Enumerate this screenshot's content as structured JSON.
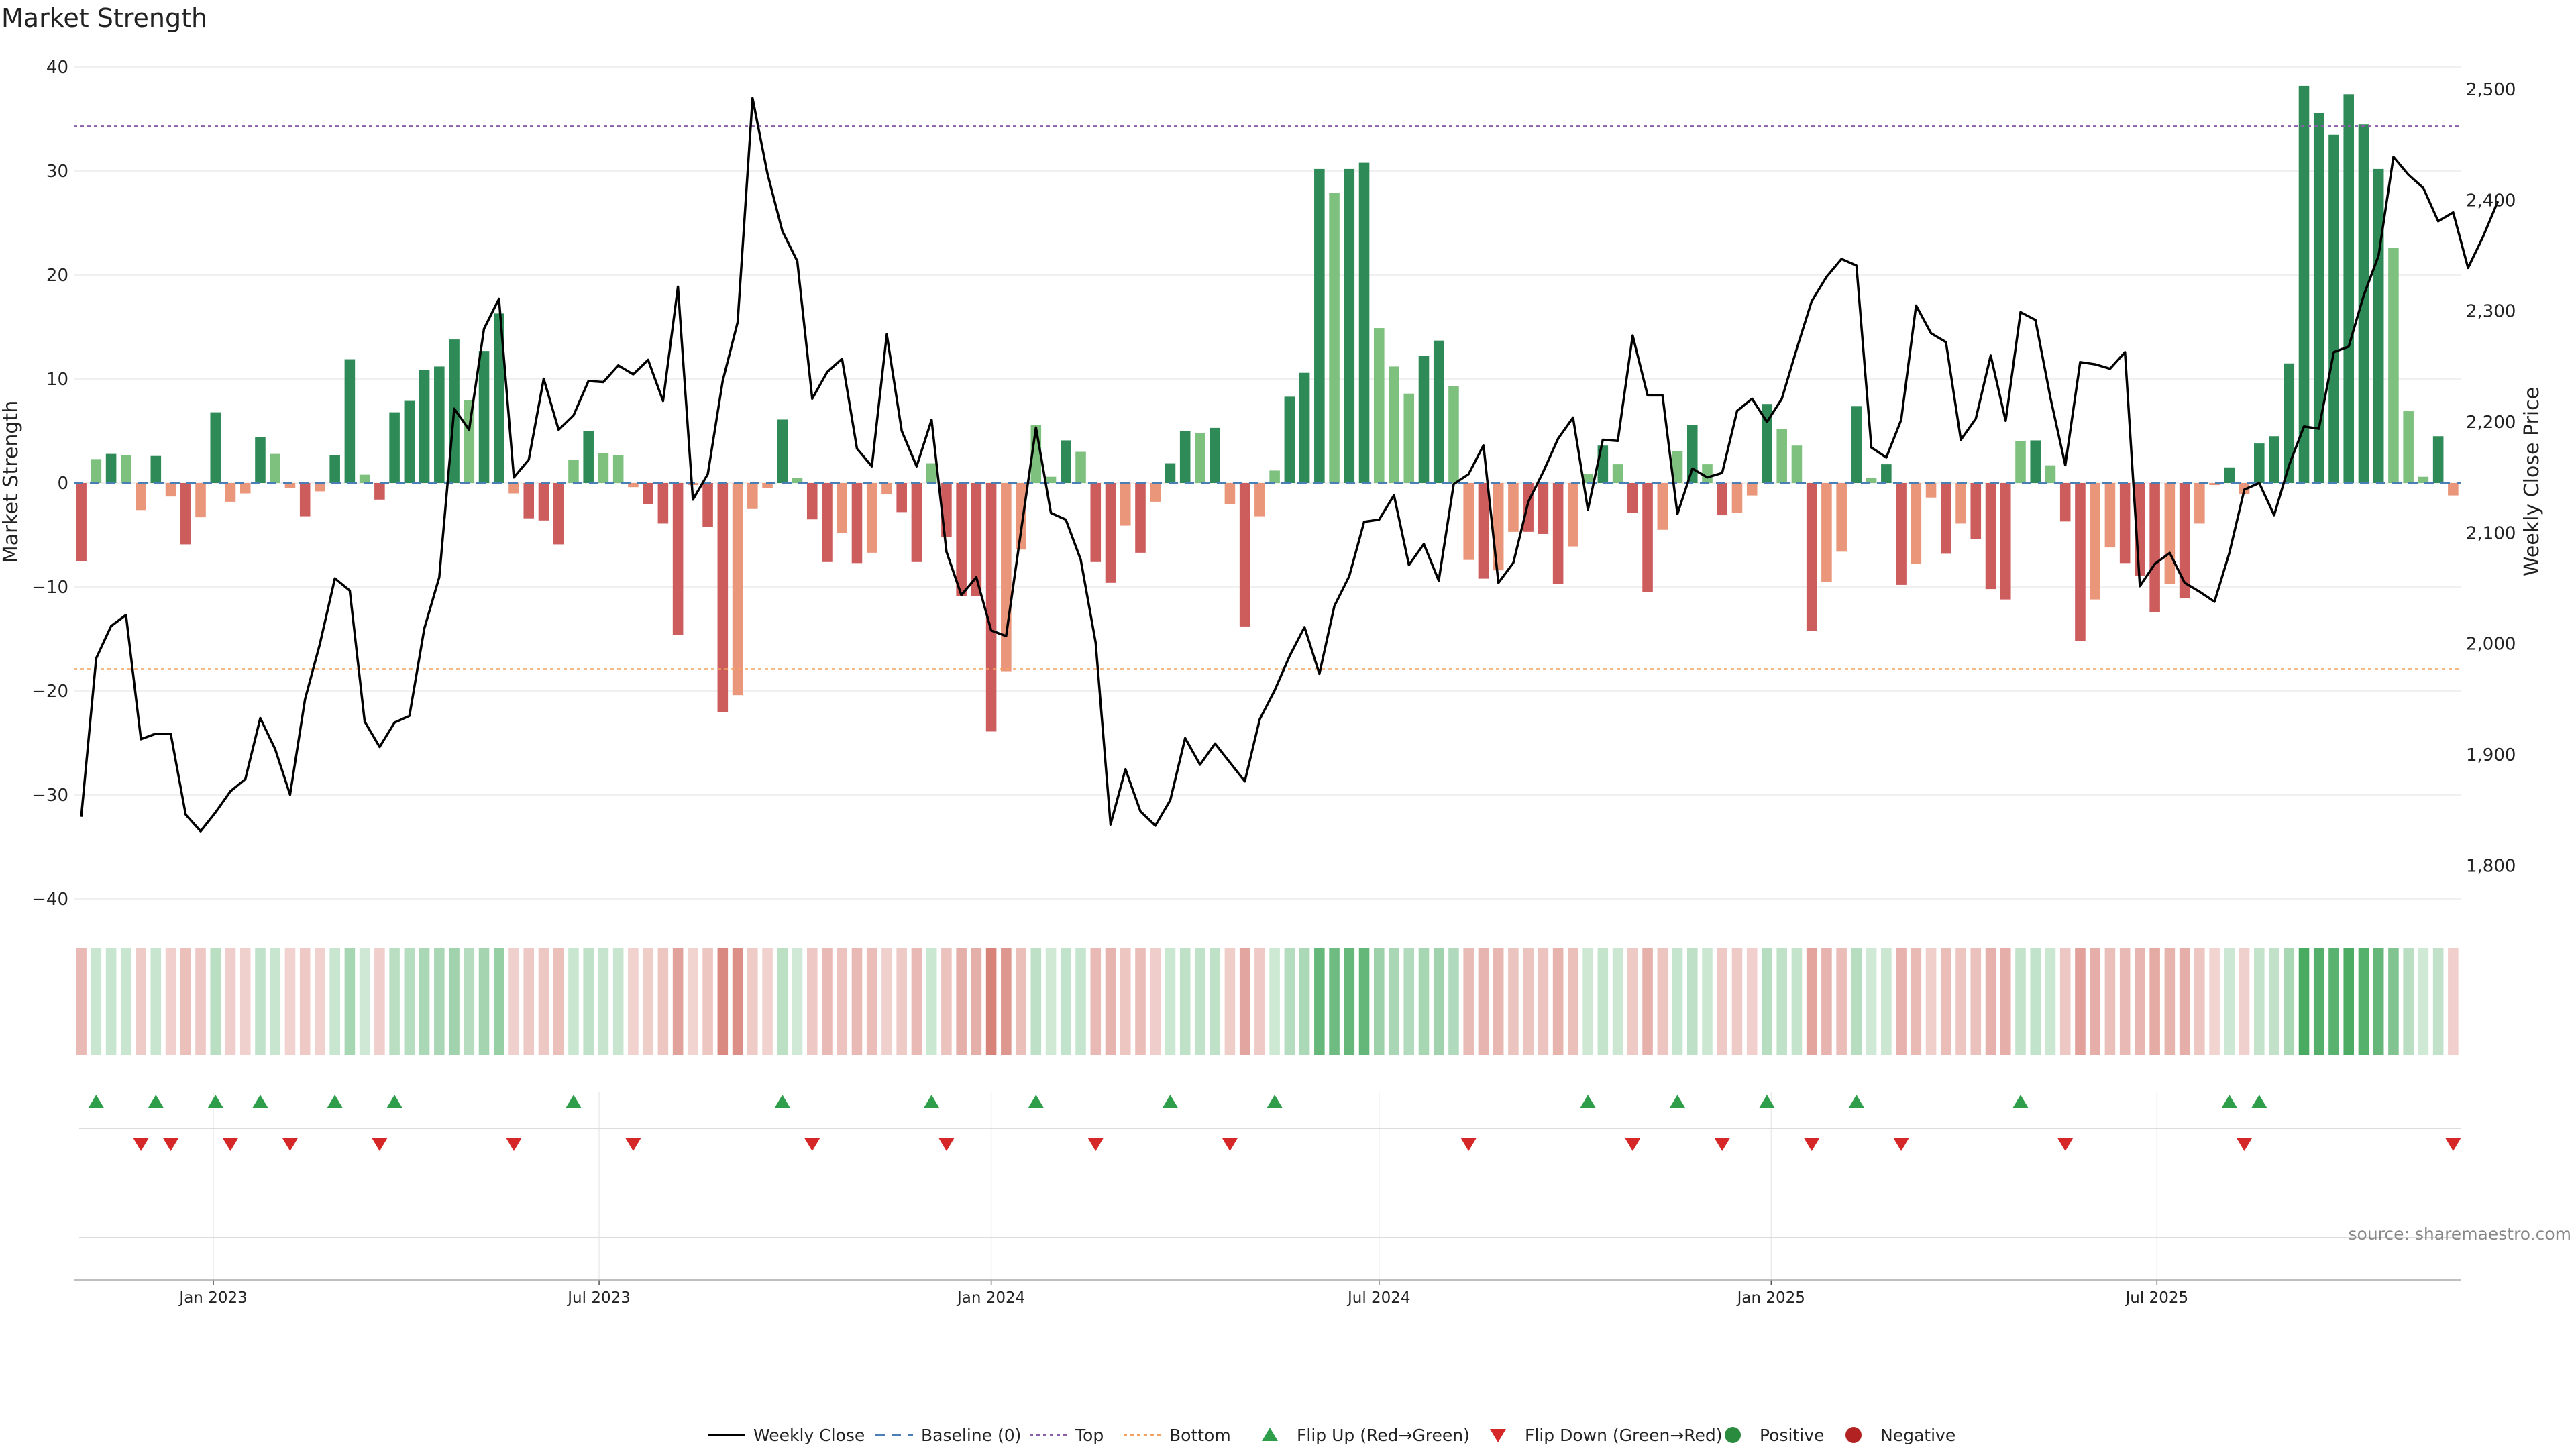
{
  "chart_data": {
    "type": "bar",
    "title": "Market Strength",
    "ylabel": "Market Strength",
    "y2label": "Weekly Close Price",
    "ylim": [
      -40,
      40
    ],
    "y2lim": [
      1770,
      2520
    ],
    "yticks": [
      "40",
      "30",
      "20",
      "10",
      "0",
      "−10",
      "−20",
      "−30",
      "−40"
    ],
    "y2ticks": [
      "2,500",
      "2,400",
      "2,300",
      "2,200",
      "2,100",
      "2,000",
      "1,900",
      "1,800"
    ],
    "x_start": "2022-10-31",
    "x_step_days": 7,
    "date_ticks": [
      {
        "date": "2023-01-01",
        "label": "Jan 2023"
      },
      {
        "date": "2023-07-01",
        "label": "Jul 2023"
      },
      {
        "date": "2024-01-01",
        "label": "Jan 2024"
      },
      {
        "date": "2024-07-01",
        "label": "Jul 2024"
      },
      {
        "date": "2025-01-01",
        "label": "Jan 2025"
      },
      {
        "date": "2025-07-01",
        "label": "Jul 2025"
      }
    ],
    "top_line": 34.3,
    "bottom_line": -17.9,
    "strength": [
      -7.5,
      2.3,
      2.8,
      2.7,
      -2.6,
      2.6,
      -1.3,
      -5.9,
      -3.3,
      6.8,
      -1.8,
      -1,
      4.4,
      2.8,
      -0.5,
      -3.2,
      -0.8,
      2.7,
      11.9,
      0.8,
      -1.6,
      6.8,
      7.9,
      10.9,
      11.2,
      13.8,
      8,
      12.7,
      16.3,
      -1,
      -3.4,
      -3.6,
      -5.9,
      2.2,
      5,
      2.9,
      2.7,
      -0.4,
      -2,
      -3.9,
      -14.6,
      -0.2,
      -4.2,
      -22,
      -20.4,
      -2.5,
      -0.5,
      6.1,
      0.5,
      -3.5,
      -7.6,
      -4.8,
      -7.7,
      -6.7,
      -1.1,
      -2.8,
      -7.6,
      1.9,
      -5.2,
      -10.9,
      -10.9,
      -23.9,
      -18.1,
      -6.4,
      5.6,
      0.6,
      4.1,
      3,
      -7.6,
      -9.6,
      -4.1,
      -6.7,
      -1.8,
      1.9,
      5,
      4.8,
      5.3,
      -2,
      -13.8,
      -3.2,
      1.2,
      8.3,
      10.6,
      30.2,
      27.9,
      30.2,
      30.8,
      14.9,
      11.2,
      8.6,
      12.2,
      13.7,
      9.3,
      -7.4,
      -9.2,
      -8.4,
      -4.7,
      -4.7,
      -4.9,
      -9.7,
      -6.1,
      0.9,
      3.6,
      1.8,
      -2.9,
      -10.5,
      -4.5,
      3.1,
      5.6,
      1.8,
      -3.1,
      -2.9,
      -1.2,
      7.6,
      5.2,
      3.6,
      -14.2,
      -9.5,
      -6.6,
      7.4,
      0.5,
      1.8,
      -9.8,
      -7.8,
      -1.4,
      -6.8,
      -3.9,
      -5.4,
      -10.2,
      -11.2,
      4,
      4.1,
      1.7,
      -3.7,
      -15.2,
      -11.2,
      -6.2,
      -7.7,
      -8.9,
      -12.4,
      -9.7,
      -11.1,
      -3.9,
      -0.2,
      1.5,
      -1.1,
      3.8,
      4.5,
      11.5,
      38.2,
      35.6,
      33.5,
      37.4,
      34.5,
      30.2,
      22.6,
      6.9,
      0.6,
      4.5,
      -1.2
    ],
    "close": [
      1844,
      1987,
      2016,
      2026,
      1914,
      1919,
      1919,
      1846,
      1831,
      1848,
      1867,
      1878,
      1933,
      1905,
      1864,
      1950,
      2000,
      2059,
      2048,
      1930,
      1907,
      1929,
      1935,
      2014,
      2060,
      2212,
      2193,
      2284,
      2311,
      2150,
      2166,
      2239,
      2193,
      2206,
      2237,
      2236,
      2251,
      2243,
      2256,
      2219,
      2322,
      2130,
      2153,
      2237,
      2290,
      2492,
      2424,
      2372,
      2345,
      2221,
      2245,
      2257,
      2176,
      2160,
      2279,
      2192,
      2160,
      2202,
      2083,
      2044,
      2060,
      2012,
      2007,
      2102,
      2195,
      2118,
      2112,
      2076,
      2001,
      1837,
      1887,
      1849,
      1836,
      1859,
      1915,
      1891,
      1910,
      1893,
      1876,
      1932,
      1958,
      1989,
      2015,
      1973,
      2034,
      2061,
      2110,
      2112,
      2134,
      2071,
      2090,
      2057,
      2144,
      2153,
      2179,
      2055,
      2073,
      2128,
      2155,
      2185,
      2204,
      2121,
      2184,
      2183,
      2278,
      2224,
      2224,
      2117,
      2158,
      2150,
      2154,
      2210,
      2221,
      2200,
      2221,
      2266,
      2309,
      2331,
      2347,
      2341,
      2177,
      2168,
      2202,
      2305,
      2280,
      2272,
      2184,
      2203,
      2260,
      2201,
      2299,
      2292,
      2222,
      2161,
      2254,
      2252,
      2248,
      2263,
      2052,
      2072,
      2082,
      2055,
      2047,
      2038,
      2082,
      2139,
      2145,
      2116,
      2161,
      2196,
      2194,
      2263,
      2268,
      2314,
      2350,
      2439,
      2423,
      2411,
      2381,
      2389,
      2339,
      2367,
      2399
    ],
    "series": [
      {
        "name": "Weekly Close",
        "color": "#000000"
      },
      {
        "name": "Baseline (0)",
        "color": "#4a7fb5"
      },
      {
        "name": "Top",
        "color": "#8a5fa8"
      },
      {
        "name": "Bottom",
        "color": "#f4a261"
      },
      {
        "name": "Flip Up (Red→Green)",
        "color": "#2e9e4a"
      },
      {
        "name": "Flip Down (Green→Red)",
        "color": "#d62728"
      },
      {
        "name": "Positive",
        "color": "#2a8a3e"
      },
      {
        "name": "Negative",
        "color": "#b22222"
      }
    ],
    "colors": {
      "strong_pos": "#2e8b57",
      "light_pos": "#7ec17e",
      "strong_neg": "#cd5c5c",
      "light_neg": "#e9967a"
    },
    "source": "source: sharemaestro.com"
  }
}
